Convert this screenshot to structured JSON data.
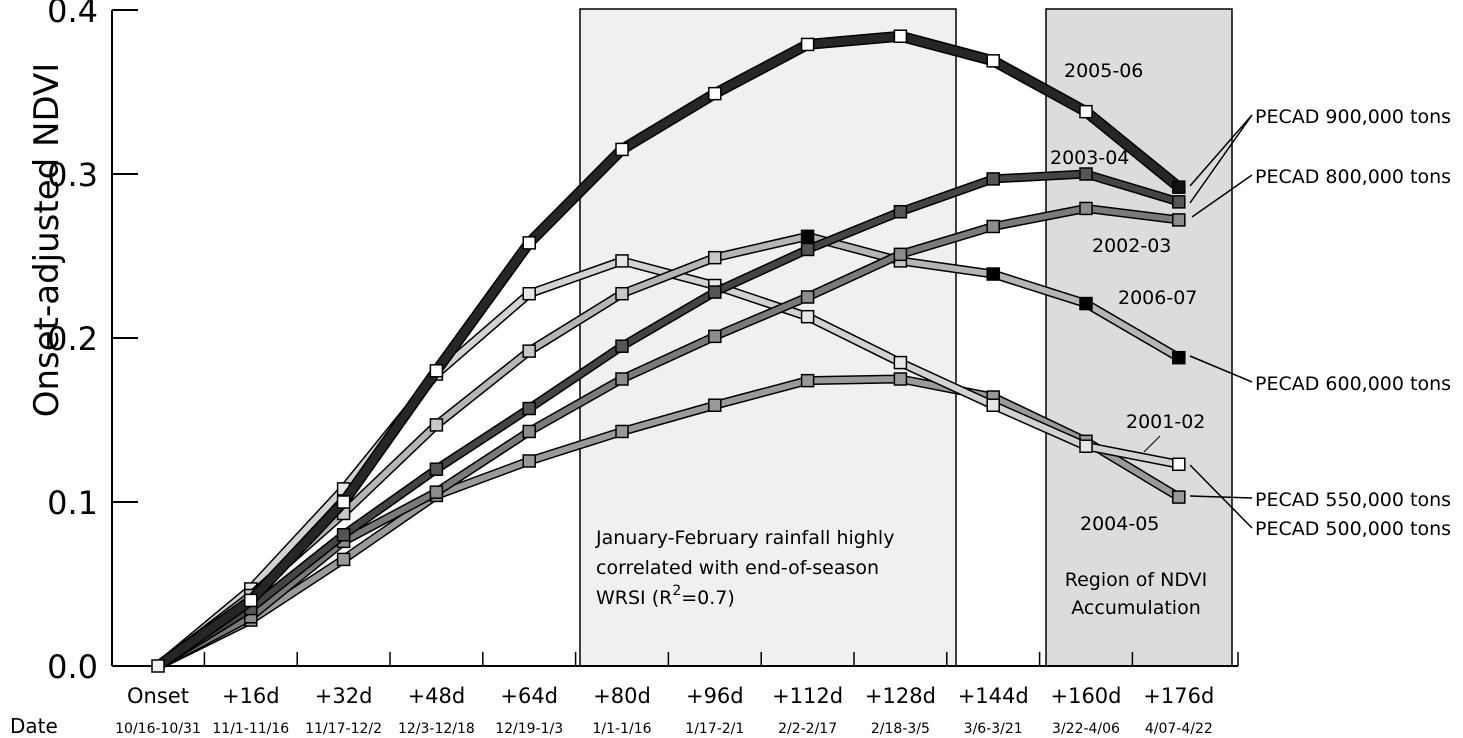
{
  "chart_data": {
    "type": "line",
    "ylabel": "Onset-adjusted NDVI",
    "ylim": [
      0,
      0.4
    ],
    "yticks": [
      "0.0",
      "0.1",
      "0.2",
      "0.3",
      "0.4"
    ],
    "yticks_values": [
      0,
      0.1,
      0.2,
      0.3,
      0.4
    ],
    "categories": [
      "Onset",
      "+16d",
      "+32d",
      "+48d",
      "+64d",
      "+80d",
      "+96d",
      "+112d",
      "+128d",
      "+144d",
      "+160d",
      "+176d"
    ],
    "date_label": "Date",
    "date_ranges": [
      "10/16-10/31",
      "11/1-11/16",
      "11/17-12/2",
      "12/3-12/18",
      "12/19-1/3",
      "1/1-1/16",
      "1/17-2/1",
      "2/2-2/17",
      "2/18-3/5",
      "3/6-3/21",
      "3/22-4/06",
      "4/07-4/22"
    ],
    "series": [
      {
        "name": "2005-06",
        "values": [
          0,
          0.04,
          0.1,
          0.18,
          0.258,
          0.315,
          0.349,
          0.379,
          0.384,
          0.369,
          0.338,
          0.292
        ],
        "line_color": "#262626",
        "marker_fill": "#ffffff",
        "last_marker_fill": "#111111"
      },
      {
        "name": "2003-04",
        "values": [
          0,
          0.035,
          0.08,
          0.12,
          0.157,
          0.195,
          0.228,
          0.254,
          0.277,
          0.297,
          0.3,
          0.283
        ],
        "line_color": "#444444",
        "marker_fill": "#555555"
      },
      {
        "name": "2002-03",
        "values": [
          0,
          0.03,
          0.076,
          0.106,
          0.143,
          0.175,
          0.201,
          0.225,
          0.251,
          0.268,
          0.279,
          0.272
        ],
        "line_color": "#7a7a7a",
        "marker_fill": "#8c8c8c"
      },
      {
        "name": "2006-07",
        "values": [
          0,
          0.043,
          0.093,
          0.147,
          0.192,
          0.227,
          0.249,
          0.262,
          0.247,
          0.239,
          0.221,
          0.188
        ],
        "line_color": "#b5b5b5",
        "marker_fill": "#c8c8c8",
        "black_marker_indices": [
          7,
          9,
          10,
          11
        ]
      },
      {
        "name": "2001-02",
        "values": [
          0,
          0.047,
          0.108,
          0.178,
          0.227,
          0.247,
          0.232,
          0.213,
          0.185,
          0.159,
          0.134,
          0.123
        ],
        "line_color": "#d2d2d2",
        "marker_fill": "#e6e6e6",
        "last_marker_fill": "#ffffff"
      },
      {
        "name": "2004-05",
        "values": [
          0,
          0.028,
          0.065,
          0.104,
          0.125,
          0.143,
          0.159,
          0.174,
          0.175,
          0.164,
          0.137,
          0.103
        ],
        "line_color": "#9a9a9a",
        "marker_fill": "#999999"
      }
    ],
    "annotations": {
      "jan_feb_line1": "January-February rainfall highly",
      "jan_feb_line2": "correlated with end-of-season",
      "jan_feb_line3_a": "WRSI (R",
      "jan_feb_line3_sup": "2",
      "jan_feb_line3_b": "=0.7)",
      "ndvi_region_line1": "Region of NDVI",
      "ndvi_region_line2": "Accumulation",
      "pecad_900": "PECAD 900,000 tons",
      "pecad_800": "PECAD 800,000 tons",
      "pecad_600": "PECAD 600,000 tons",
      "pecad_550": "PECAD 550,000 tons",
      "pecad_500": "PECAD 500,000 tons"
    },
    "shaded_regions": [
      {
        "from": "+80d",
        "to": "+128d",
        "color": "#f0f0f0"
      },
      {
        "from": "+160d",
        "to": "+176d",
        "color": "#dcdcdc"
      }
    ]
  }
}
